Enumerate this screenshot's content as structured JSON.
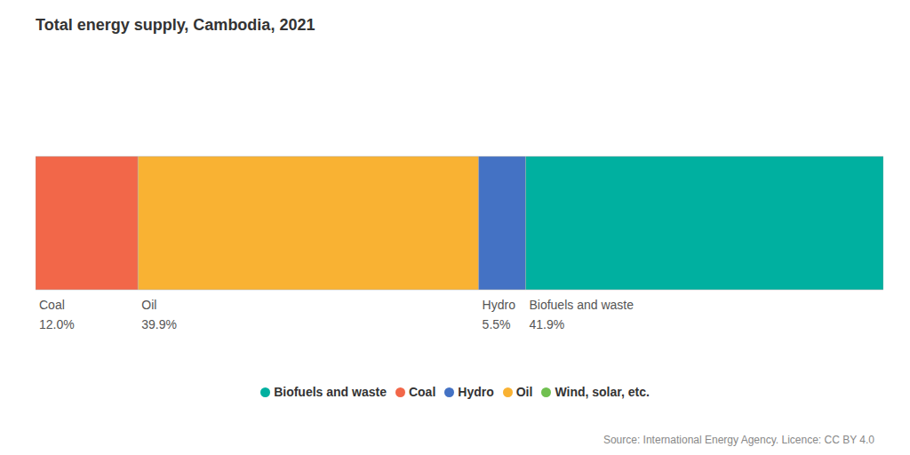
{
  "chart_data": {
    "type": "bar",
    "title": "Total energy supply, Cambodia, 2021",
    "orientation": "horizontal",
    "stacked": true,
    "categories": [
      null
    ],
    "series": [
      {
        "name": "Coal",
        "color": "#F26749",
        "values": [
          12.0
        ],
        "value_labels": [
          "12.0%"
        ]
      },
      {
        "name": "Oil",
        "color": "#F9B233",
        "values": [
          39.9
        ],
        "value_labels": [
          "39.9%"
        ]
      },
      {
        "name": "Hydro",
        "color": "#4472C4",
        "values": [
          5.5
        ],
        "value_labels": [
          "5.5%"
        ]
      },
      {
        "name": "Wind, solar, etc.",
        "color": "#70C050",
        "values": [
          null
        ],
        "value_labels": [
          null
        ]
      },
      {
        "name": "Biofuels and waste",
        "color": "#00B0A0",
        "values": [
          41.9
        ],
        "value_labels": [
          "41.9%"
        ]
      }
    ],
    "xlim": [
      0,
      99.3
    ],
    "data_labels": true,
    "tick_labels": false,
    "grid": false,
    "legend": "bottom",
    "annotations": [
      "Source: International Energy Agency. Licence: CC BY 4.0"
    ]
  }
}
